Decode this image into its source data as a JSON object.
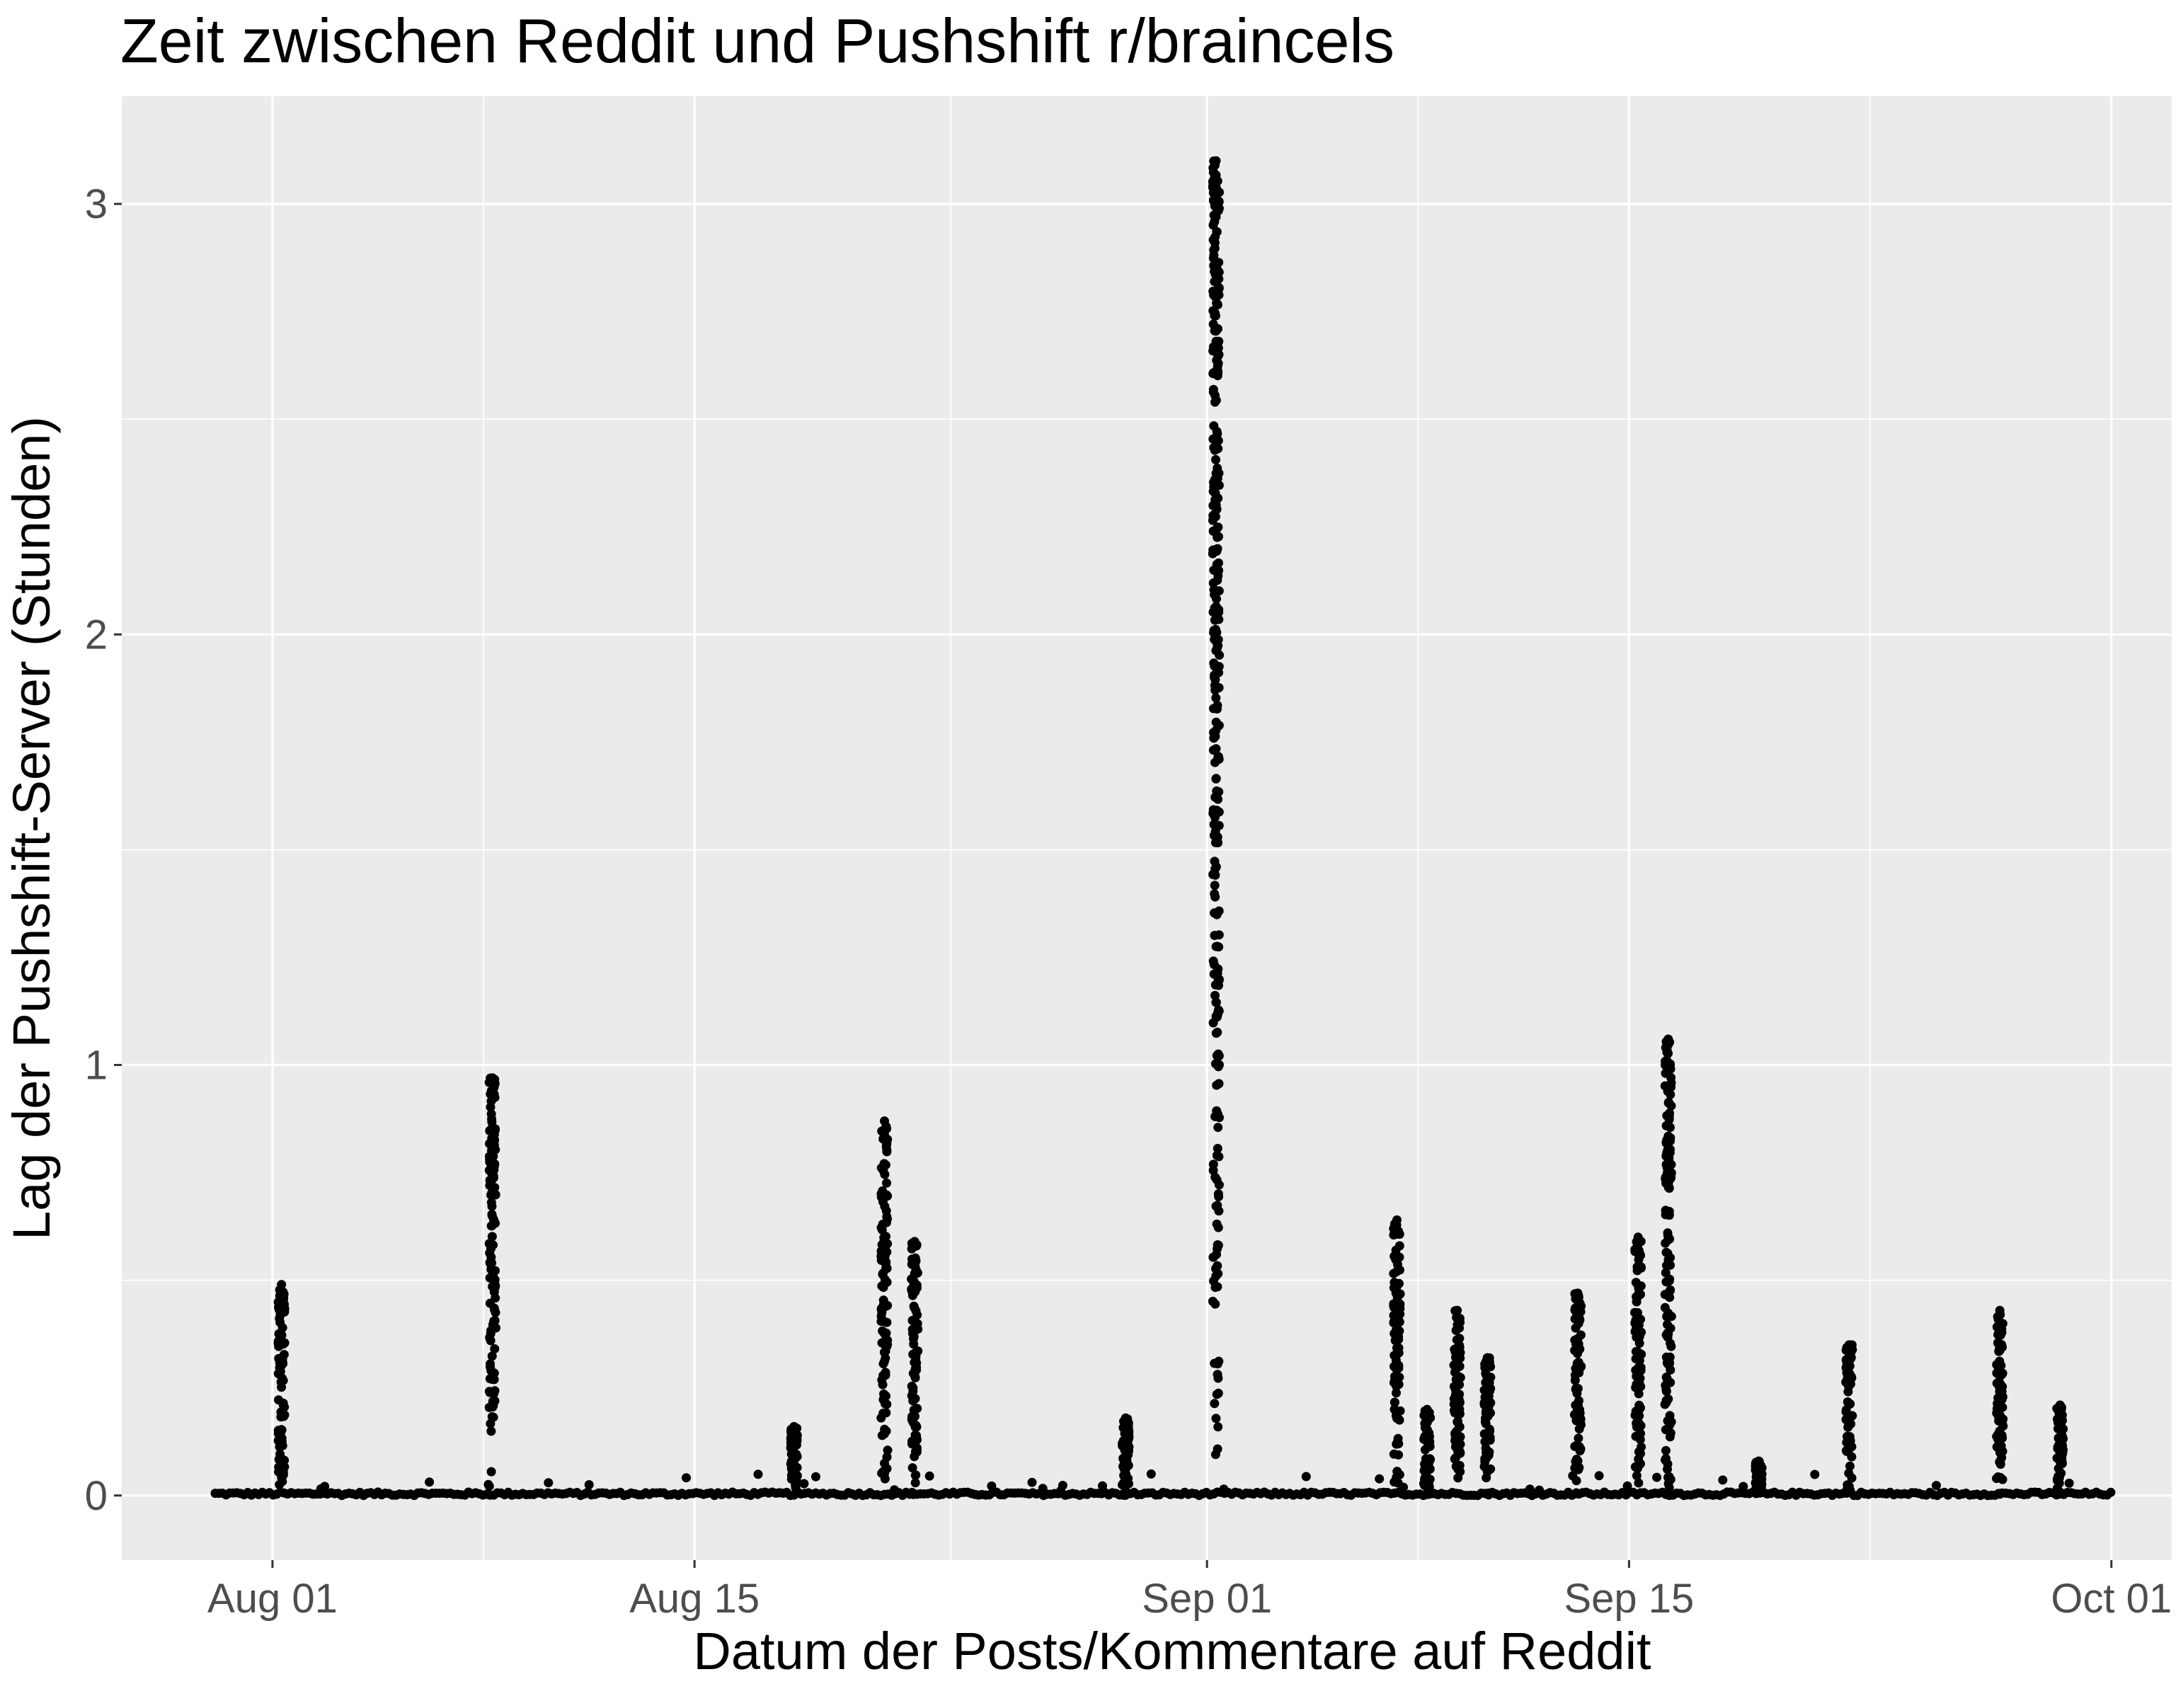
{
  "chart_data": {
    "type": "scatter",
    "title": "Zeit zwischen Reddit und Pushshift r/braincels",
    "xlabel": "Datum der Posts/Kommentare auf Reddit",
    "ylabel": "Lag der Pushshift-Server (Stunden)",
    "x_ticks": [
      "Aug 01",
      "Aug 15",
      "Sep 01",
      "Sep 15",
      "Oct 01"
    ],
    "x_tick_dates": [
      "2018-08-01",
      "2018-08-15",
      "2018-09-01",
      "2018-09-15",
      "2018-10-01"
    ],
    "y_ticks": [
      "0",
      "1",
      "2",
      "3"
    ],
    "y_tick_values": [
      0,
      1,
      2,
      3
    ],
    "xlim": [
      "2018-07-27",
      "2018-10-03"
    ],
    "ylim": [
      -0.15,
      3.25
    ],
    "grid": true,
    "legend": "none",
    "colors": {
      "panel": "#ebebeb",
      "grid": "#ffffff",
      "points": "#000000"
    },
    "spikes": [
      {
        "date": "2018-08-01",
        "max": 0.49
      },
      {
        "date": "2018-08-08",
        "max": 0.97
      },
      {
        "date": "2018-08-18",
        "max": 0.16
      },
      {
        "date": "2018-08-21",
        "max": 0.87
      },
      {
        "date": "2018-08-22",
        "max": 0.59
      },
      {
        "date": "2018-08-29",
        "max": 0.18
      },
      {
        "date": "2018-09-01",
        "max": 3.1
      },
      {
        "date": "2018-09-07",
        "max": 0.64
      },
      {
        "date": "2018-09-08",
        "max": 0.2
      },
      {
        "date": "2018-09-09",
        "max": 0.43
      },
      {
        "date": "2018-09-10",
        "max": 0.32
      },
      {
        "date": "2018-09-13",
        "max": 0.47
      },
      {
        "date": "2018-09-15",
        "max": 0.6
      },
      {
        "date": "2018-09-16",
        "max": 1.06
      },
      {
        "date": "2018-09-19",
        "max": 0.08
      },
      {
        "date": "2018-09-22",
        "max": 0.35
      },
      {
        "date": "2018-09-27",
        "max": 0.43
      },
      {
        "date": "2018-09-29",
        "max": 0.21
      }
    ]
  }
}
